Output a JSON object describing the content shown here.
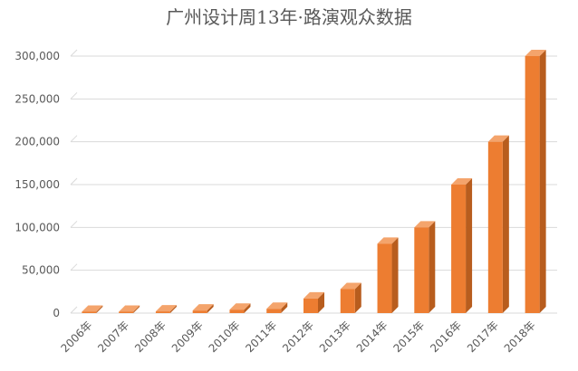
{
  "chart_data": {
    "type": "bar",
    "title": "广州设计周13年·路演观众数据",
    "xlabel": "",
    "ylabel": "",
    "categories": [
      "2006年",
      "2007年",
      "2008年",
      "2009年",
      "2010年",
      "2011年",
      "2012年",
      "2013年",
      "2014年",
      "2015年",
      "2016年",
      "2017年",
      "2018年"
    ],
    "values": [
      1000,
      1000,
      2000,
      3000,
      4000,
      5000,
      17000,
      28000,
      81000,
      100000,
      150000,
      200000,
      300000
    ],
    "ylim": [
      0,
      300000
    ],
    "yticks": [
      0,
      50000,
      100000,
      150000,
      200000,
      250000,
      300000
    ],
    "ytick_labels": [
      "0",
      "50,000",
      "100,000",
      "150,000",
      "200,000",
      "250,000",
      "300,000"
    ],
    "grid": true,
    "legend": "none",
    "colors": {
      "bar_front": "#ED7D31",
      "bar_side": "#B85D1E",
      "bar_top": "#F4A46C",
      "grid": "#D9D9D9",
      "text": "#595959"
    }
  }
}
